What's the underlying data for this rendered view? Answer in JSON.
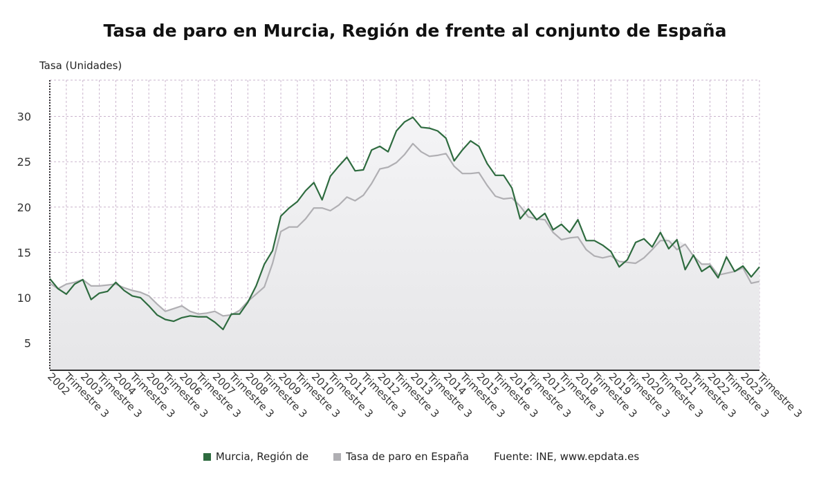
{
  "chart_data": {
    "type": "line",
    "title": "Tasa de paro en Murcia, Región de frente al conjunto de España",
    "ylabel": "Tasa (Unidades)",
    "ylim": [
      2,
      34
    ],
    "yticks": [
      5,
      10,
      15,
      20,
      25,
      30
    ],
    "grid": true,
    "legend_position": "bottom",
    "source": "Fuente: INE, www.epdata.es",
    "x_tick_labels": [
      "2002",
      "Trimestre 3",
      "2003",
      "Trimestre 3",
      "2004",
      "Trimestre 3",
      "2005",
      "Trimestre 3",
      "2006",
      "Trimestre 3",
      "2007",
      "Trimestre 3",
      "2008",
      "Trimestre 3",
      "2009",
      "Trimestre 3",
      "2010",
      "Trimestre 3",
      "2011",
      "Trimestre 3",
      "2012",
      "Trimestre 3",
      "2013",
      "Trimestre 3",
      "2014",
      "Trimestre 3",
      "2015",
      "Trimestre 3",
      "2016",
      "Trimestre 3",
      "2017",
      "Trimestre 3",
      "2018",
      "Trimestre 3",
      "2019",
      "Trimestre 3",
      "2020",
      "Trimestre 3",
      "2021",
      "Trimestre 3",
      "2022",
      "Trimestre 3",
      "2023",
      "Trimestre 3"
    ],
    "series": [
      {
        "name": "Murcia, Región de",
        "color": "#2e6b3f",
        "values": [
          12.1,
          11.0,
          10.4,
          11.5,
          12.0,
          9.8,
          10.5,
          10.7,
          11.7,
          10.8,
          10.2,
          10.0,
          9.1,
          8.1,
          7.6,
          7.4,
          7.8,
          8.0,
          7.9,
          7.9,
          7.3,
          6.5,
          8.2,
          8.2,
          9.5,
          11.3,
          13.7,
          15.2,
          19.0,
          19.9,
          20.6,
          21.8,
          22.7,
          20.8,
          23.4,
          24.5,
          25.5,
          24.0,
          24.1,
          26.3,
          26.7,
          26.1,
          28.4,
          29.4,
          29.9,
          28.8,
          28.7,
          28.4,
          27.6,
          25.1,
          26.3,
          27.3,
          26.7,
          24.8,
          23.5,
          23.5,
          22.1,
          18.7,
          19.8,
          18.6,
          19.3,
          17.5,
          18.1,
          17.2,
          18.6,
          16.3,
          16.3,
          15.8,
          15.1,
          13.4,
          14.2,
          16.1,
          16.5,
          15.6,
          17.2,
          15.4,
          16.4,
          13.1,
          14.7,
          12.9,
          13.5,
          12.2,
          14.5,
          12.9,
          13.5,
          12.3,
          13.4
        ]
      },
      {
        "name": "Tasa de paro en España",
        "color": "#b0afb3",
        "values": [
          11.6,
          11.0,
          11.5,
          11.7,
          12.0,
          11.3,
          11.3,
          11.4,
          11.5,
          11.1,
          10.8,
          10.6,
          10.2,
          9.3,
          8.5,
          8.8,
          9.1,
          8.5,
          8.2,
          8.3,
          8.5,
          8.0,
          8.1,
          8.6,
          9.6,
          10.4,
          11.2,
          13.8,
          17.3,
          17.8,
          17.8,
          18.7,
          19.9,
          19.9,
          19.6,
          20.2,
          21.1,
          20.7,
          21.3,
          22.6,
          24.2,
          24.4,
          24.9,
          25.8,
          27.0,
          26.1,
          25.6,
          25.7,
          25.9,
          24.5,
          23.7,
          23.7,
          23.8,
          22.4,
          21.2,
          20.9,
          21.0,
          20.1,
          18.9,
          18.7,
          18.6,
          17.2,
          16.4,
          16.6,
          16.7,
          15.3,
          14.6,
          14.4,
          14.6,
          14.0,
          13.9,
          13.8,
          14.4,
          15.3,
          16.3,
          16.3,
          15.3,
          15.9,
          14.6,
          13.7,
          13.7,
          12.5,
          12.7,
          12.9,
          13.3,
          11.6,
          11.8
        ]
      }
    ]
  }
}
